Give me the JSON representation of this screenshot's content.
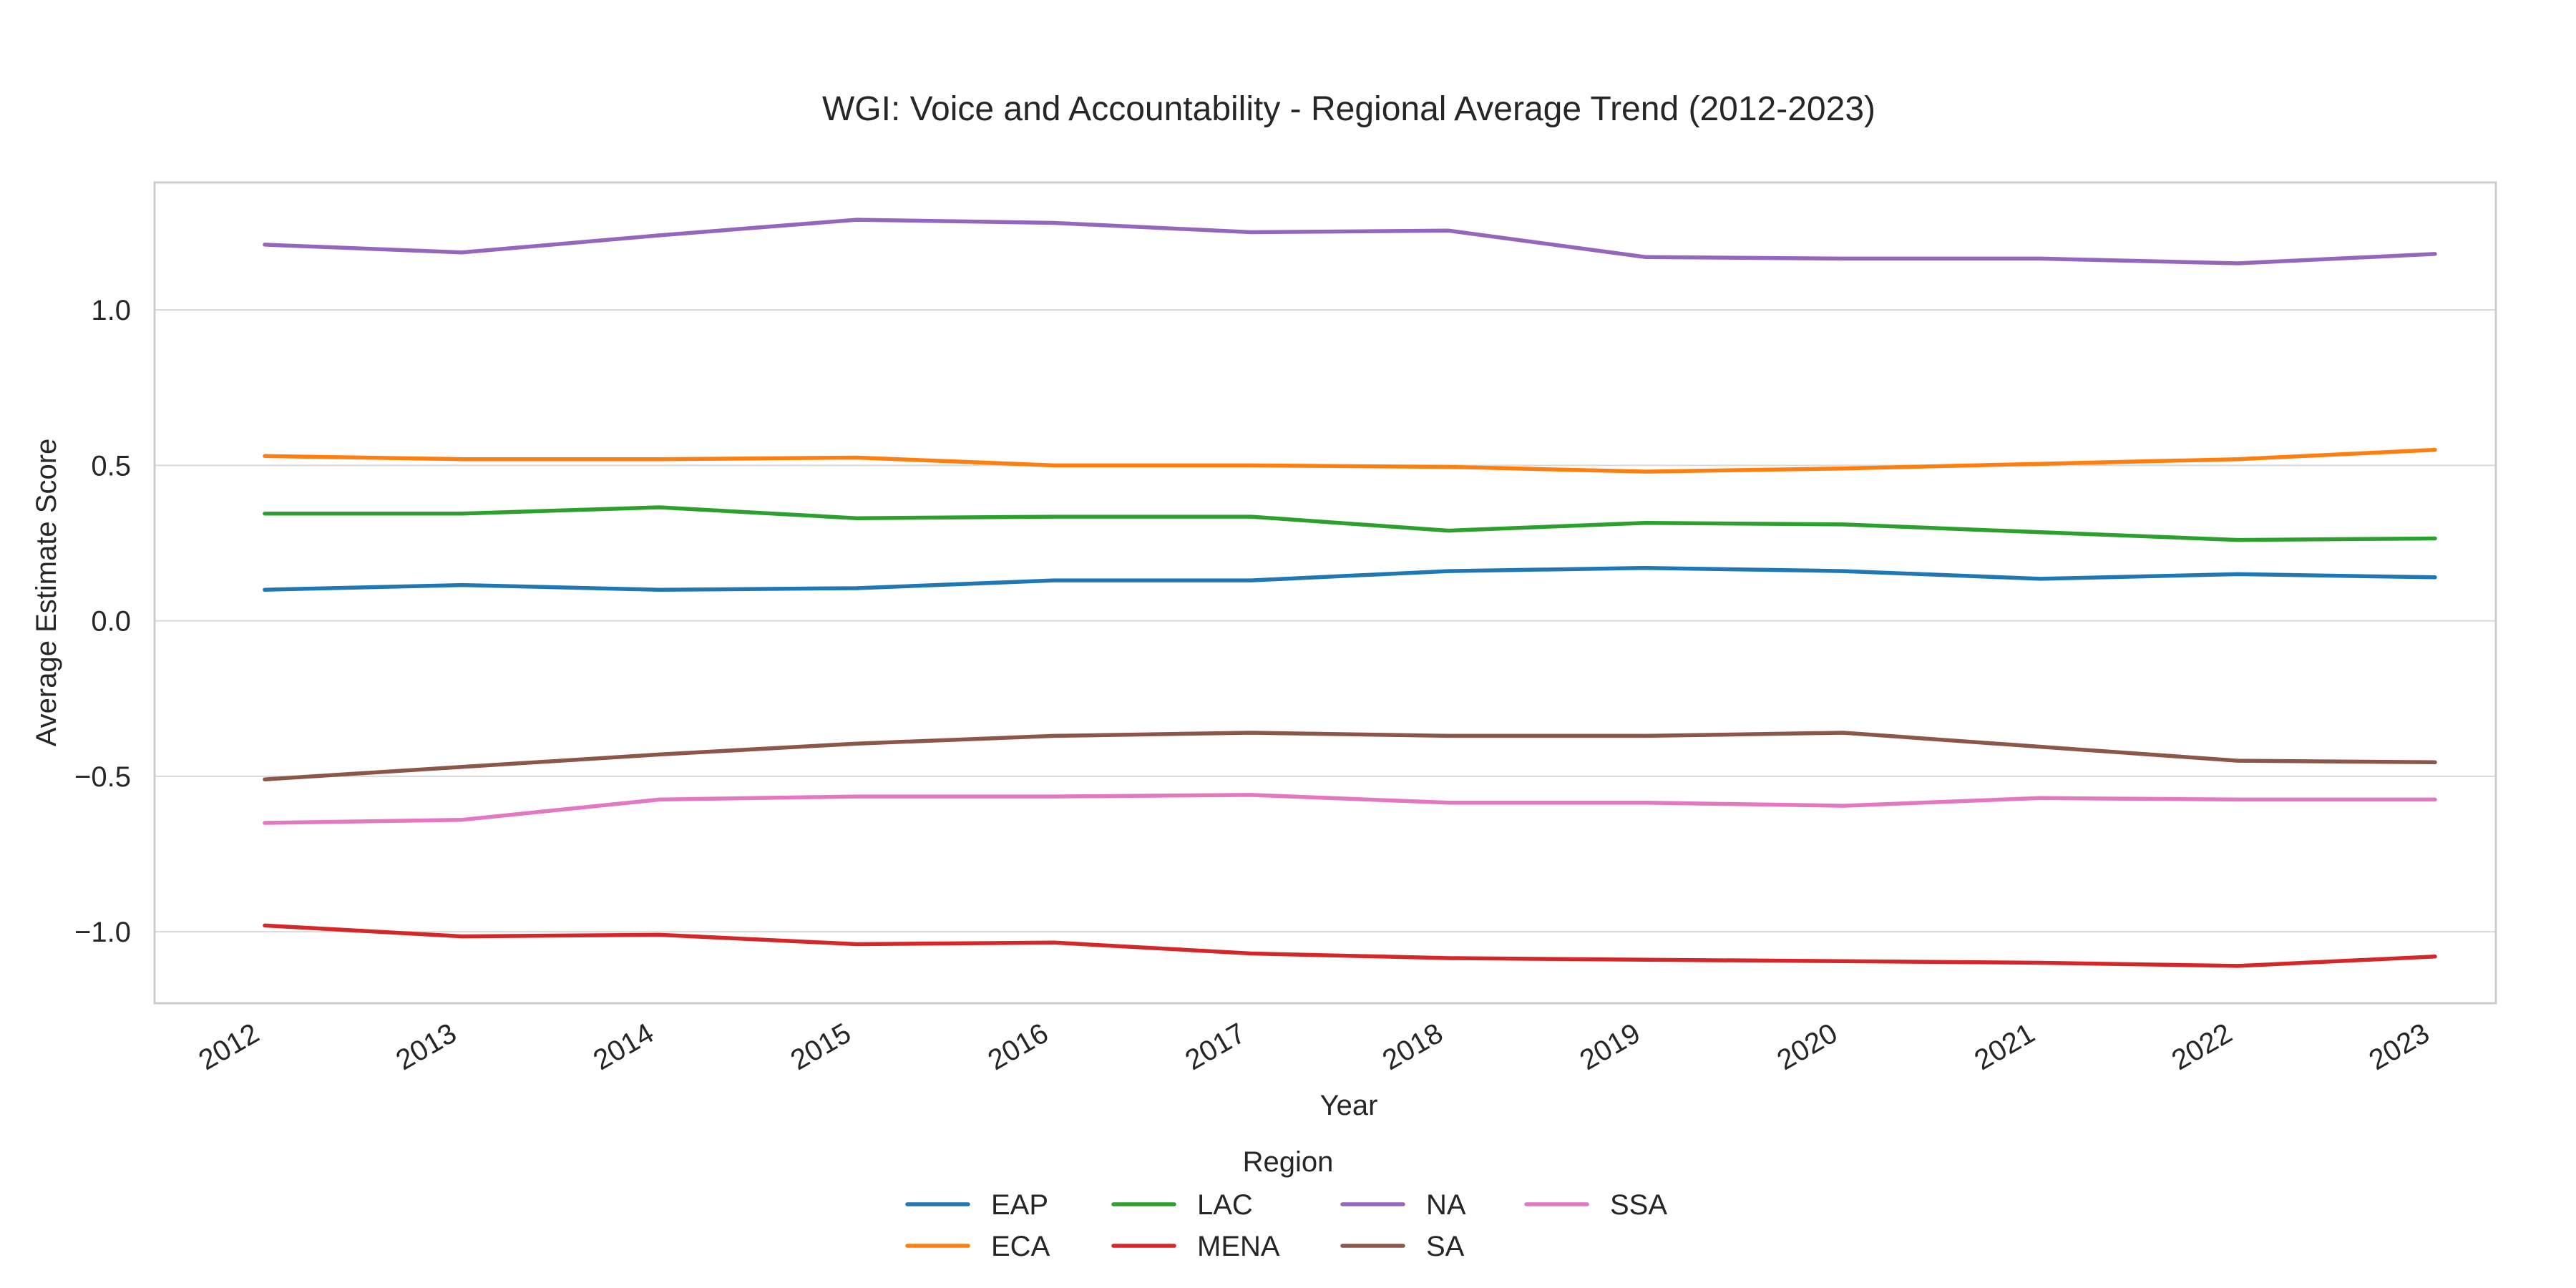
{
  "chart_data": {
    "type": "line",
    "title": "WGI: Voice and Accountability - Regional Average Trend (2012-2023)",
    "xlabel": "Year",
    "ylabel": "Average Estimate Score",
    "x": [
      "2012",
      "2013",
      "2014",
      "2015",
      "2016",
      "2017",
      "2018",
      "2019",
      "2020",
      "2021",
      "2022",
      "2023"
    ],
    "ylim": [
      -1.23,
      1.41
    ],
    "yticks": [
      1.0,
      0.5,
      0.0,
      -0.5,
      -1.0
    ],
    "ytick_labels": [
      "1.0",
      "0.5",
      "0.0",
      "−0.5",
      "−1.0"
    ],
    "grid": true,
    "legend": {
      "title": "Region",
      "placement": "bottom-center",
      "columns": 4
    },
    "series": [
      {
        "name": "EAP",
        "color": "#1f77b4",
        "values": [
          0.1,
          0.115,
          0.1,
          0.105,
          0.13,
          0.13,
          0.16,
          0.17,
          0.16,
          0.135,
          0.15,
          0.14
        ]
      },
      {
        "name": "ECA",
        "color": "#ff7f0e",
        "values": [
          0.53,
          0.52,
          0.52,
          0.525,
          0.5,
          0.5,
          0.495,
          0.48,
          0.49,
          0.505,
          0.52,
          0.55
        ]
      },
      {
        "name": "LAC",
        "color": "#2ca02c",
        "values": [
          0.345,
          0.345,
          0.365,
          0.33,
          0.335,
          0.335,
          0.29,
          0.315,
          0.31,
          0.285,
          0.26,
          0.265
        ]
      },
      {
        "name": "MENA",
        "color": "#d62728",
        "values": [
          -0.98,
          -1.015,
          -1.01,
          -1.04,
          -1.035,
          -1.07,
          -1.085,
          -1.09,
          -1.095,
          -1.1,
          -1.11,
          -1.08
        ]
      },
      {
        "name": "NA",
        "color": "#9467bd",
        "values": [
          1.21,
          1.185,
          1.24,
          1.29,
          1.28,
          1.25,
          1.255,
          1.17,
          1.165,
          1.165,
          1.15,
          1.18
        ]
      },
      {
        "name": "SA",
        "color": "#8c564b",
        "values": [
          -0.51,
          -0.47,
          -0.43,
          -0.395,
          -0.37,
          -0.36,
          -0.37,
          -0.37,
          -0.36,
          -0.405,
          -0.45,
          -0.455
        ]
      },
      {
        "name": "SSA",
        "color": "#e377c2",
        "values": [
          -0.65,
          -0.64,
          -0.575,
          -0.565,
          -0.565,
          -0.56,
          -0.585,
          -0.585,
          -0.595,
          -0.57,
          -0.575,
          -0.575
        ]
      }
    ]
  }
}
